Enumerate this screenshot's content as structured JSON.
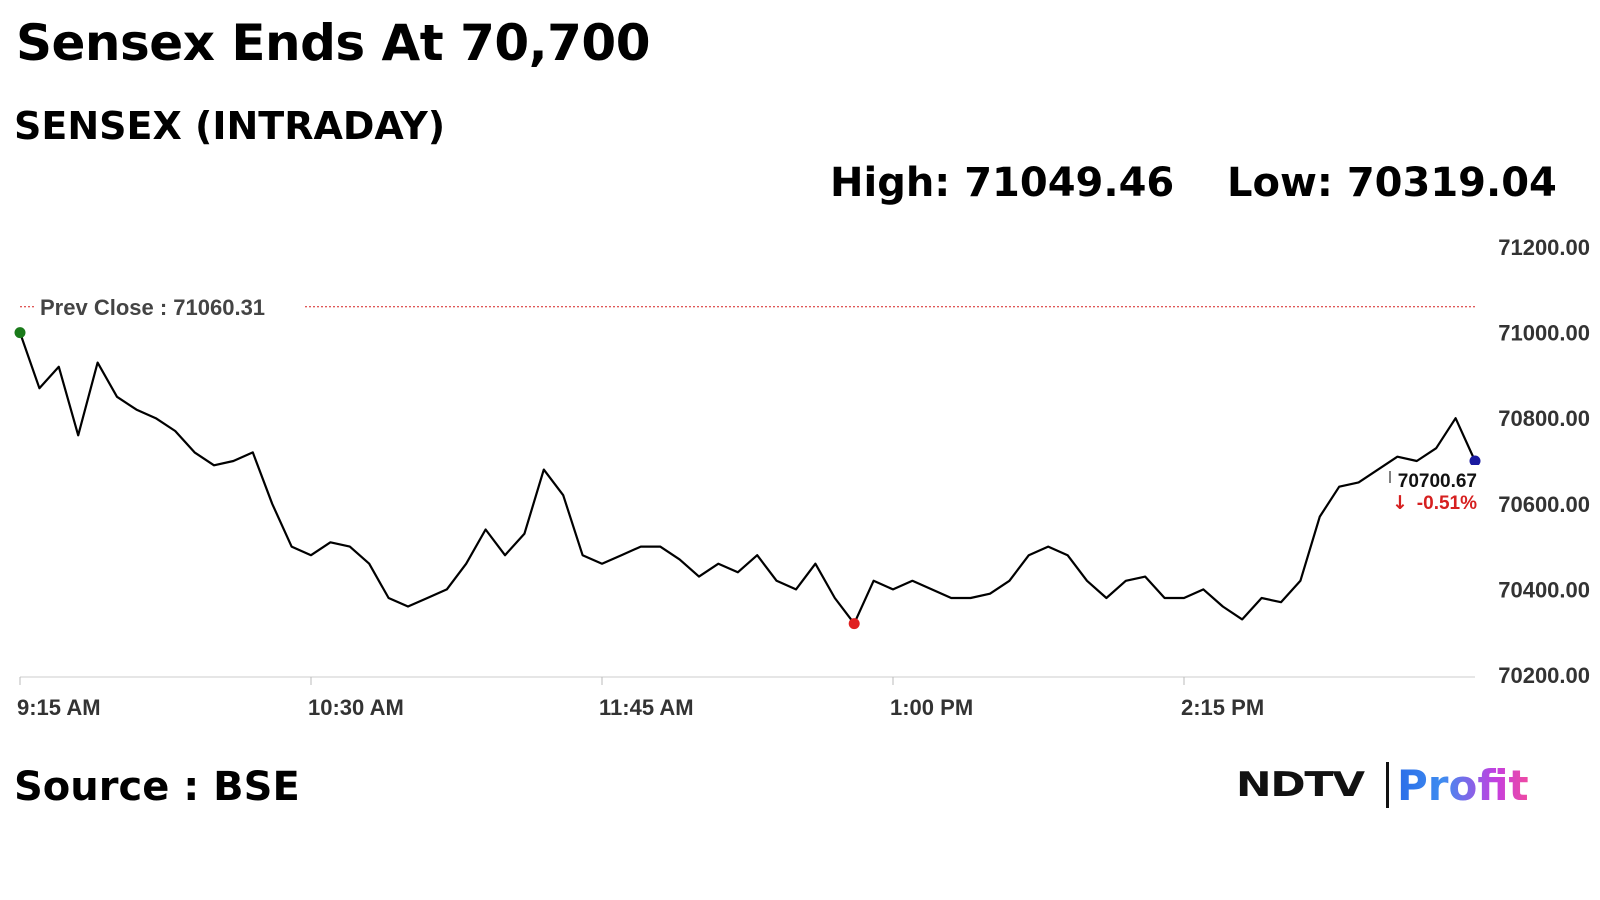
{
  "headline": "Sensex Ends At 70,700",
  "subtitle": "SENSEX (INTRADAY)",
  "stats": {
    "high": "High: 71049.46",
    "low": "Low: 70319.04"
  },
  "source": "Source : BSE",
  "brand": {
    "ndtv": "NDTV",
    "profit": "Profit"
  },
  "colors": {
    "line": "#000000",
    "prev_close": "#d62020",
    "open_marker": "#1a7a1a",
    "low_marker": "#e02020",
    "last_marker": "#1a1aa0",
    "change": "#d62020"
  },
  "chart_data": {
    "type": "line",
    "x_ticks": [
      "9:15 AM",
      "10:30 AM",
      "11:45 AM",
      "1:00 PM",
      "2:15 PM"
    ],
    "y_ticks": [
      "71200.00",
      "71000.00",
      "70800.00",
      "70600.00",
      "70400.00",
      "70200.00"
    ],
    "ylim": [
      70200,
      71200
    ],
    "prev_close_label": "Prev Close : 71060.31",
    "prev_close": 71060.31,
    "last_value_label": "70700.67",
    "change_label": "-0.51%",
    "series": [
      {
        "x": [
          "9:15 AM",
          "9:20 AM",
          "9:25 AM",
          "9:30 AM",
          "9:35 AM",
          "9:40 AM",
          "9:45 AM",
          "9:50 AM",
          "9:55 AM",
          "10:00 AM",
          "10:05 AM",
          "10:10 AM",
          "10:15 AM",
          "10:20 AM",
          "10:25 AM",
          "10:30 AM",
          "10:35 AM",
          "10:40 AM",
          "10:45 AM",
          "10:50 AM",
          "10:55 AM",
          "11:00 AM",
          "11:05 AM",
          "11:10 AM",
          "11:15 AM",
          "11:20 AM",
          "11:25 AM",
          "11:30 AM",
          "11:35 AM",
          "11:40 AM",
          "11:45 AM",
          "11:50 AM",
          "11:55 AM",
          "12:00 PM",
          "12:05 PM",
          "12:10 PM",
          "12:15 PM",
          "12:20 PM",
          "12:25 PM",
          "12:30 PM",
          "12:35 PM",
          "12:40 PM",
          "12:45 PM",
          "12:50 PM",
          "12:55 PM",
          "1:00 PM",
          "1:05 PM",
          "1:10 PM",
          "1:15 PM",
          "1:20 PM",
          "1:25 PM",
          "1:30 PM",
          "1:35 PM",
          "1:40 PM",
          "1:45 PM",
          "1:50 PM",
          "1:55 PM",
          "2:00 PM",
          "2:05 PM",
          "2:10 PM",
          "2:15 PM",
          "2:20 PM",
          "2:25 PM",
          "2:30 PM",
          "2:35 PM",
          "2:40 PM",
          "2:45 PM",
          "2:50 PM",
          "2:55 PM",
          "3:00 PM",
          "3:05 PM",
          "3:10 PM",
          "3:15 PM",
          "3:20 PM",
          "3:25 PM",
          "3:30 PM"
        ],
        "values": [
          71000,
          70870,
          70920,
          70760,
          70930,
          70850,
          70820,
          70800,
          70770,
          70720,
          70690,
          70700,
          70720,
          70600,
          70500,
          70480,
          70510,
          70500,
          70460,
          70380,
          70360,
          70380,
          70400,
          70460,
          70540,
          70480,
          70530,
          70680,
          70620,
          70480,
          70460,
          70480,
          70500,
          70500,
          70470,
          70430,
          70460,
          70440,
          70480,
          70420,
          70400,
          70460,
          70380,
          70320,
          70420,
          70400,
          70420,
          70400,
          70380,
          70380,
          70390,
          70420,
          70480,
          70500,
          70480,
          70420,
          70380,
          70420,
          70430,
          70380,
          70380,
          70400,
          70360,
          70330,
          70380,
          70370,
          70420,
          70570,
          70640,
          70650,
          70680,
          70710,
          70700,
          70730,
          70800,
          70700
        ]
      }
    ]
  }
}
